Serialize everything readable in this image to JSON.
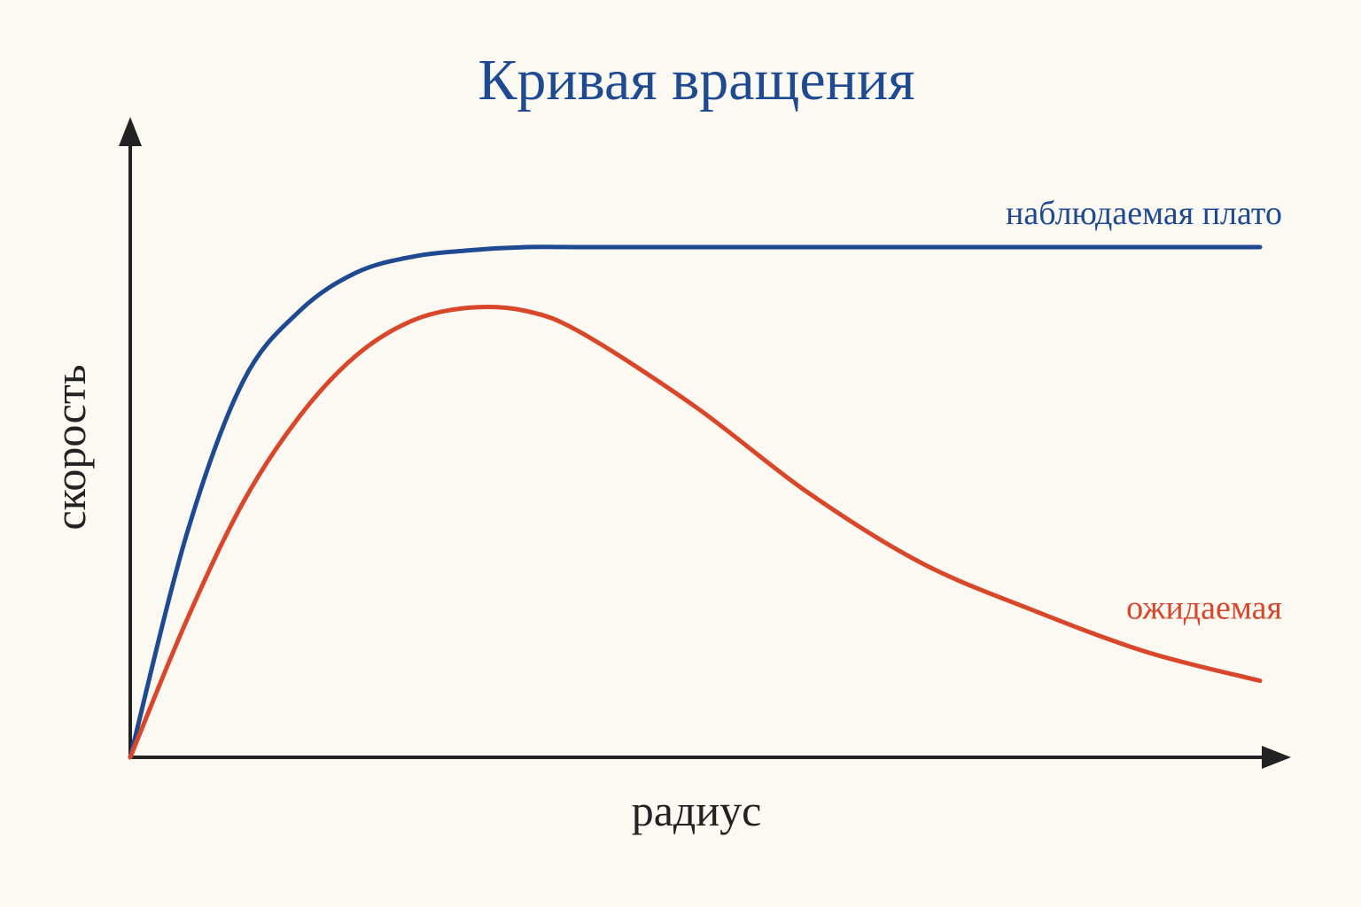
{
  "chart_data": {
    "type": "line",
    "title": "Кривая вращения",
    "x_label": "радиус",
    "y_label": "скорость",
    "x": [
      0,
      0.5,
      1,
      1.5,
      2,
      2.5,
      3,
      3.5,
      4,
      5,
      6,
      7,
      8,
      9,
      10
    ],
    "xlim": [
      0,
      10
    ],
    "ylim": [
      0,
      10
    ],
    "series": [
      {
        "name": "наблюдаемая плато",
        "color": "#1d4a91",
        "values": [
          0,
          3.5,
          5.9,
          7.0,
          7.6,
          7.85,
          7.95,
          8.0,
          8.0,
          8.0,
          8.0,
          8.0,
          8.0,
          8.0,
          8.0
        ]
      },
      {
        "name": "ожидаемая",
        "color": "#d9472b",
        "values": [
          0,
          2.15,
          4.0,
          5.35,
          6.3,
          6.85,
          7.05,
          7.0,
          6.65,
          5.5,
          4.15,
          3.05,
          2.3,
          1.65,
          1.2
        ]
      }
    ]
  }
}
